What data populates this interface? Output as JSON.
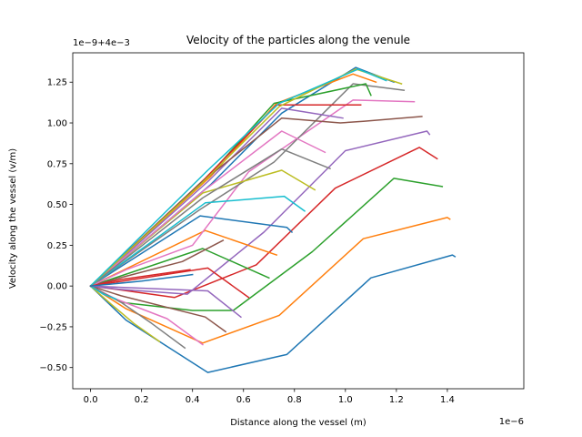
{
  "chart_data": {
    "type": "line",
    "title": "Velocity of the particles along the venule",
    "xlabel": "Distance along the vessel (m)",
    "ylabel": "Velocity along the vessel (v/m)",
    "x_offset_text": "1e−6",
    "y_offset_text": "1e−9+4e−3",
    "xlim": [
      -0.07,
      1.7
    ],
    "ylim": [
      -0.63,
      1.43
    ],
    "x_ticks": [
      0.0,
      0.2,
      0.4,
      0.6,
      0.8,
      1.0,
      1.2,
      1.4
    ],
    "x_tick_labels": [
      "0.0",
      "0.2",
      "0.4",
      "0.6",
      "0.8",
      "1.0",
      "1.2",
      "1.4"
    ],
    "y_ticks": [
      -0.5,
      -0.25,
      0.0,
      0.25,
      0.5,
      0.75,
      1.0,
      1.25
    ],
    "y_tick_labels": [
      "−0.50",
      "−0.25",
      "0.00",
      "0.25",
      "0.50",
      "0.75",
      "1.00",
      "1.25"
    ],
    "grid": false,
    "legend": "none",
    "series": [
      {
        "color": "#1f77b4",
        "points": [
          [
            0,
            0
          ],
          [
            0.14,
            -0.21
          ],
          [
            0.46,
            -0.53
          ],
          [
            0.77,
            -0.42
          ],
          [
            1.1,
            0.05
          ],
          [
            1.42,
            0.19
          ],
          [
            1.43,
            0.18
          ]
        ]
      },
      {
        "color": "#ff7f0e",
        "points": [
          [
            0,
            0
          ],
          [
            0.14,
            -0.14
          ],
          [
            0.44,
            -0.35
          ],
          [
            0.74,
            -0.18
          ],
          [
            1.07,
            0.29
          ],
          [
            1.4,
            0.42
          ],
          [
            1.41,
            0.41
          ]
        ]
      },
      {
        "color": "#2ca02c",
        "points": [
          [
            0,
            0
          ],
          [
            0.12,
            -0.1
          ],
          [
            0.4,
            -0.15
          ],
          [
            0.56,
            -0.15
          ],
          [
            0.87,
            0.21
          ],
          [
            1.19,
            0.66
          ],
          [
            1.38,
            0.61
          ]
        ]
      },
      {
        "color": "#d62728",
        "points": [
          [
            0,
            0
          ],
          [
            0.1,
            -0.02
          ],
          [
            0.33,
            -0.07
          ],
          [
            0.65,
            0.13
          ],
          [
            0.96,
            0.6
          ],
          [
            1.29,
            0.85
          ],
          [
            1.36,
            0.78
          ]
        ]
      },
      {
        "color": "#9467bd",
        "points": [
          [
            0,
            0
          ],
          [
            0.11,
            -0.02
          ],
          [
            0.38,
            -0.05
          ],
          [
            0.68,
            0.33
          ],
          [
            1.0,
            0.83
          ],
          [
            1.32,
            0.95
          ],
          [
            1.33,
            0.93
          ]
        ]
      },
      {
        "color": "#8c564b",
        "points": [
          [
            0,
            0
          ],
          [
            0.12,
            -0.06
          ],
          [
            0.45,
            -0.19
          ],
          [
            0.53,
            -0.28
          ]
        ]
      },
      {
        "color": "#e377c2",
        "points": [
          [
            0,
            0
          ],
          [
            0.1,
            -0.08
          ],
          [
            0.3,
            -0.2
          ],
          [
            0.44,
            -0.36
          ]
        ]
      },
      {
        "color": "#7f7f7f",
        "points": [
          [
            0,
            0
          ],
          [
            0.12,
            -0.1
          ],
          [
            0.24,
            -0.23
          ],
          [
            0.37,
            -0.38
          ]
        ]
      },
      {
        "color": "#bcbd22",
        "points": [
          [
            0,
            0
          ],
          [
            0.08,
            -0.11
          ],
          [
            0.17,
            -0.23
          ],
          [
            0.27,
            -0.34
          ]
        ]
      },
      {
        "color": "#17becf",
        "points": [
          [
            0,
            0
          ],
          [
            0.05,
            -0.05
          ],
          [
            0.1,
            -0.08
          ]
        ]
      },
      {
        "color": "#1f77b4",
        "points": [
          [
            0,
            0
          ],
          [
            0.43,
            0.43
          ],
          [
            0.77,
            0.36
          ],
          [
            0.79,
            0.33
          ]
        ]
      },
      {
        "color": "#ff7f0e",
        "points": [
          [
            0,
            0
          ],
          [
            0.45,
            0.34
          ],
          [
            0.73,
            0.19
          ]
        ]
      },
      {
        "color": "#2ca02c",
        "points": [
          [
            0,
            0
          ],
          [
            0.44,
            0.23
          ],
          [
            0.7,
            0.05
          ]
        ]
      },
      {
        "color": "#d62728",
        "points": [
          [
            0,
            0
          ],
          [
            0.46,
            0.11
          ],
          [
            0.62,
            -0.07
          ]
        ]
      },
      {
        "color": "#9467bd",
        "points": [
          [
            0,
            0
          ],
          [
            0.46,
            -0.03
          ],
          [
            0.59,
            -0.19
          ]
        ]
      },
      {
        "color": "#8c564b",
        "points": [
          [
            0,
            0
          ],
          [
            0.14,
            0.06
          ],
          [
            0.36,
            0.15
          ],
          [
            0.52,
            0.28
          ]
        ]
      },
      {
        "color": "#e377c2",
        "points": [
          [
            0,
            0
          ],
          [
            0.14,
            0.1
          ],
          [
            0.4,
            0.25
          ],
          [
            0.62,
            0.7
          ],
          [
            1.03,
            1.14
          ],
          [
            1.27,
            1.13
          ]
        ]
      },
      {
        "color": "#7f7f7f",
        "points": [
          [
            0,
            0
          ],
          [
            0.43,
            0.47
          ],
          [
            0.72,
            0.76
          ],
          [
            1.03,
            1.24
          ],
          [
            1.23,
            1.2
          ]
        ]
      },
      {
        "color": "#bcbd22",
        "points": [
          [
            0,
            0
          ],
          [
            0.44,
            0.57
          ],
          [
            0.75,
            0.71
          ],
          [
            0.88,
            0.59
          ]
        ]
      },
      {
        "color": "#17becf",
        "points": [
          [
            0,
            0
          ],
          [
            0.45,
            0.51
          ],
          [
            0.76,
            0.55
          ],
          [
            0.84,
            0.46
          ]
        ]
      },
      {
        "color": "#1f77b4",
        "points": [
          [
            0,
            0
          ],
          [
            0.47,
            0.62
          ],
          [
            0.75,
            1.06
          ],
          [
            1.04,
            1.34
          ],
          [
            1.19,
            1.25
          ]
        ]
      },
      {
        "color": "#ff7f0e",
        "points": [
          [
            0,
            0
          ],
          [
            0.47,
            0.67
          ],
          [
            0.73,
            1.12
          ],
          [
            1.03,
            1.3
          ],
          [
            1.12,
            1.25
          ]
        ]
      },
      {
        "color": "#2ca02c",
        "points": [
          [
            0,
            0
          ],
          [
            0.46,
            0.67
          ],
          [
            0.72,
            1.12
          ],
          [
            1.08,
            1.24
          ],
          [
            1.1,
            1.17
          ]
        ]
      },
      {
        "color": "#d62728",
        "points": [
          [
            0,
            0
          ],
          [
            0.45,
            0.66
          ],
          [
            0.73,
            1.11
          ],
          [
            1.06,
            1.11
          ]
        ]
      },
      {
        "color": "#9467bd",
        "points": [
          [
            0,
            0
          ],
          [
            0.46,
            0.64
          ],
          [
            0.75,
            1.09
          ],
          [
            0.99,
            1.03
          ]
        ]
      },
      {
        "color": "#8c564b",
        "points": [
          [
            0,
            0
          ],
          [
            0.43,
            0.63
          ],
          [
            0.75,
            1.03
          ],
          [
            0.98,
            1.0
          ],
          [
            1.07,
            1.01
          ],
          [
            1.3,
            1.04
          ]
        ]
      },
      {
        "color": "#e377c2",
        "points": [
          [
            0,
            0
          ],
          [
            0.44,
            0.58
          ],
          [
            0.75,
            0.95
          ],
          [
            0.92,
            0.82
          ]
        ]
      },
      {
        "color": "#7f7f7f",
        "points": [
          [
            0,
            0
          ],
          [
            0.44,
            0.54
          ],
          [
            0.75,
            0.84
          ],
          [
            0.94,
            0.72
          ]
        ]
      },
      {
        "color": "#bcbd22",
        "points": [
          [
            0,
            0
          ],
          [
            0.43,
            0.62
          ],
          [
            0.74,
            1.1
          ],
          [
            1.04,
            1.33
          ],
          [
            1.22,
            1.24
          ]
        ]
      },
      {
        "color": "#17becf",
        "points": [
          [
            0,
            0
          ],
          [
            0.46,
            0.71
          ],
          [
            0.74,
            1.12
          ],
          [
            1.05,
            1.33
          ],
          [
            1.16,
            1.26
          ]
        ]
      },
      {
        "color": "#d62728",
        "points": [
          [
            0,
            0
          ],
          [
            0.12,
            0.04
          ],
          [
            0.39,
            0.1
          ]
        ]
      },
      {
        "color": "#1f77b4",
        "points": [
          [
            0,
            0
          ],
          [
            0.2,
            0.03
          ],
          [
            0.4,
            0.07
          ]
        ]
      }
    ]
  }
}
